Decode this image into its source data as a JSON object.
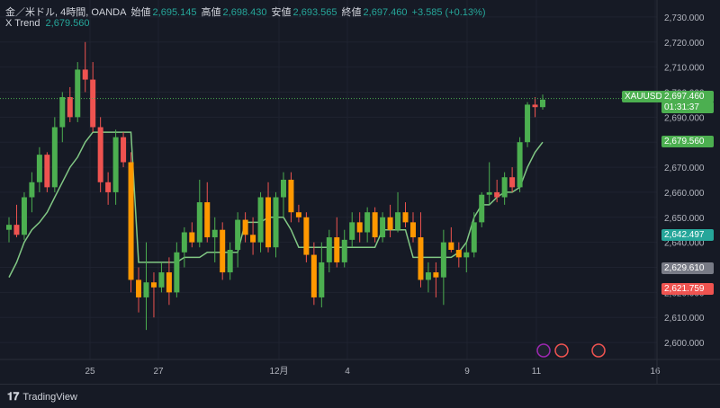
{
  "header": {
    "symbol_desc": "金／米ドル, 4時間, OANDA",
    "open_label": "始値",
    "open_value": "2,695.145",
    "high_label": "高値",
    "high_value": "2,698.430",
    "low_label": "安値",
    "low_value": "2,693.565",
    "close_label": "終値",
    "close_value": "2,697.460",
    "change": "+3.585 (+0.13%)",
    "indicator_name": "X Trend",
    "indicator_value": "2,679.560"
  },
  "price_tags": {
    "symbol": "XAUUSD",
    "last_price": "2,697.460",
    "countdown": "01:31:37",
    "trend_value": "2,679.560",
    "level_green": "2,642.497",
    "level_gray": "2,629.610",
    "level_red": "2,621.759"
  },
  "footer": {
    "brand": "TradingView"
  },
  "colors": {
    "bg": "#161a25",
    "up": "#26a69a",
    "down": "#ef5350",
    "candle_up": "#4caf50",
    "candle_down": "#ff9800",
    "trend": "#81c784",
    "accent": "#4caf50"
  },
  "chart_data": {
    "type": "candlestick",
    "ylim": [
      2595,
      2735
    ],
    "y_ticks": [
      2600,
      2610,
      2620,
      2630,
      2640,
      2650,
      2660,
      2670,
      2680,
      2690,
      2700,
      2710,
      2720,
      2730
    ],
    "y_tick_labels": [
      "2,600.000",
      "2,610.000",
      "2,620.000",
      "2,630.000",
      "2,640.000",
      "2,650.000",
      "2,660.000",
      "2,670.000",
      "2,680.000",
      "2,690.000",
      "2,700.000",
      "2,710.000",
      "2,720.000",
      "2,730.000"
    ],
    "x_tick_labels": [
      "25",
      "27",
      "12月",
      "4",
      "9",
      "11",
      "16"
    ],
    "candles": [
      [
        2645,
        2650,
        2640,
        2647
      ],
      [
        2647,
        2655,
        2642,
        2643
      ],
      [
        2643,
        2660,
        2641,
        2658
      ],
      [
        2658,
        2668,
        2652,
        2664
      ],
      [
        2664,
        2678,
        2660,
        2675
      ],
      [
        2675,
        2676,
        2660,
        2662
      ],
      [
        2662,
        2690,
        2660,
        2686
      ],
      [
        2686,
        2700,
        2680,
        2698
      ],
      [
        2698,
        2702,
        2688,
        2690
      ],
      [
        2690,
        2712,
        2688,
        2709
      ],
      [
        2709,
        2720,
        2700,
        2705
      ],
      [
        2705,
        2712,
        2684,
        2686
      ],
      [
        2686,
        2690,
        2660,
        2664
      ],
      [
        2664,
        2668,
        2655,
        2660
      ],
      [
        2660,
        2685,
        2655,
        2682
      ],
      [
        2682,
        2684,
        2670,
        2672
      ],
      [
        2672,
        2676,
        2620,
        2625
      ],
      [
        2625,
        2630,
        2612,
        2618
      ],
      [
        2618,
        2640,
        2605,
        2624
      ],
      [
        2624,
        2628,
        2610,
        2622
      ],
      [
        2622,
        2632,
        2620,
        2628
      ],
      [
        2628,
        2634,
        2615,
        2620
      ],
      [
        2620,
        2640,
        2618,
        2636
      ],
      [
        2636,
        2646,
        2630,
        2644
      ],
      [
        2644,
        2648,
        2638,
        2640
      ],
      [
        2640,
        2665,
        2638,
        2656
      ],
      [
        2656,
        2664,
        2640,
        2642
      ],
      [
        2642,
        2650,
        2632,
        2645
      ],
      [
        2645,
        2648,
        2625,
        2628
      ],
      [
        2628,
        2640,
        2625,
        2637
      ],
      [
        2637,
        2652,
        2630,
        2649
      ],
      [
        2649,
        2652,
        2640,
        2643
      ],
      [
        2643,
        2650,
        2635,
        2640
      ],
      [
        2640,
        2660,
        2636,
        2658
      ],
      [
        2658,
        2664,
        2636,
        2638
      ],
      [
        2638,
        2660,
        2634,
        2658
      ],
      [
        2658,
        2668,
        2650,
        2665
      ],
      [
        2665,
        2668,
        2648,
        2652
      ],
      [
        2652,
        2655,
        2648,
        2650
      ],
      [
        2650,
        2652,
        2632,
        2635
      ],
      [
        2635,
        2640,
        2615,
        2618
      ],
      [
        2618,
        2640,
        2614,
        2632
      ],
      [
        2632,
        2645,
        2628,
        2642
      ],
      [
        2642,
        2650,
        2630,
        2632
      ],
      [
        2632,
        2645,
        2630,
        2641
      ],
      [
        2641,
        2652,
        2638,
        2648
      ],
      [
        2648,
        2652,
        2640,
        2644
      ],
      [
        2644,
        2654,
        2640,
        2652
      ],
      [
        2652,
        2654,
        2640,
        2642
      ],
      [
        2642,
        2652,
        2640,
        2650
      ],
      [
        2650,
        2655,
        2642,
        2645
      ],
      [
        2645,
        2660,
        2644,
        2652
      ],
      [
        2652,
        2656,
        2646,
        2648
      ],
      [
        2648,
        2652,
        2640,
        2642
      ],
      [
        2642,
        2652,
        2622,
        2625
      ],
      [
        2625,
        2632,
        2620,
        2628
      ],
      [
        2628,
        2632,
        2618,
        2626
      ],
      [
        2626,
        2645,
        2615,
        2640
      ],
      [
        2640,
        2646,
        2636,
        2637
      ],
      [
        2637,
        2640,
        2630,
        2634
      ],
      [
        2634,
        2640,
        2628,
        2636
      ],
      [
        2636,
        2652,
        2634,
        2648
      ],
      [
        2648,
        2660,
        2646,
        2659
      ],
      [
        2659,
        2672,
        2655,
        2660
      ],
      [
        2660,
        2665,
        2656,
        2658
      ],
      [
        2658,
        2668,
        2655,
        2666
      ],
      [
        2666,
        2670,
        2660,
        2662
      ],
      [
        2662,
        2682,
        2660,
        2680
      ],
      [
        2680,
        2696,
        2678,
        2695
      ],
      [
        2695,
        2698,
        2690,
        2694
      ],
      [
        2694,
        2699,
        2693,
        2697
      ]
    ],
    "trend": [
      2626,
      2632,
      2640,
      2645,
      2648,
      2652,
      2658,
      2664,
      2670,
      2674,
      2680,
      2684,
      2684,
      2684,
      2684,
      2684,
      2684,
      2632,
      2632,
      2632,
      2632,
      2632,
      2632,
      2634,
      2634,
      2634,
      2636,
      2636,
      2636,
      2636,
      2636,
      2648,
      2648,
      2648,
      2650,
      2650,
      2650,
      2645,
      2638,
      2638,
      2638,
      2638,
      2638,
      2638,
      2638,
      2638,
      2638,
      2638,
      2638,
      2645,
      2645,
      2645,
      2645,
      2634,
      2634,
      2634,
      2634,
      2634,
      2634,
      2636,
      2640,
      2650,
      2655,
      2655,
      2658,
      2660,
      2660,
      2662,
      2670,
      2676,
      2680
    ],
    "price_lines": {
      "last": 2697.46,
      "trend": 2679.56,
      "green": 2642.497,
      "gray": 2629.61,
      "red": 2621.759
    }
  }
}
